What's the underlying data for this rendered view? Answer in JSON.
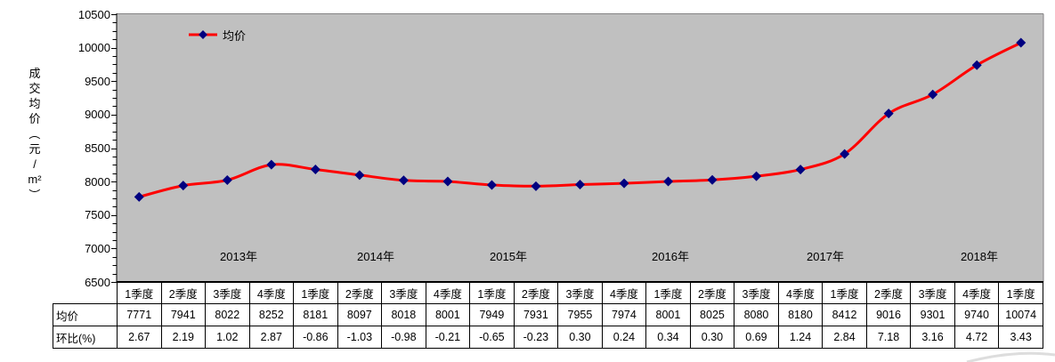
{
  "chart": {
    "y_axis_title": "成交均价（元/m²）",
    "y_axis_title_segments": [
      "成",
      "交",
      "均",
      "价",
      "（",
      "元",
      "/",
      "m²",
      "）"
    ],
    "legend": {
      "label": "均价"
    },
    "y_tick_labels": [
      "10500",
      "10000",
      "9500",
      "9000",
      "8500",
      "8000",
      "7500",
      "7000",
      "6500"
    ],
    "year_labels": [
      "2013年",
      "2014年",
      "2015年",
      "2016年",
      "2017年",
      "2018年"
    ],
    "colors": {
      "line": "#FF0000",
      "marker": "#000080",
      "plot_bg": "#C0C0C0",
      "plot_border": "#848284",
      "axis": "#000000"
    }
  },
  "chart_data": {
    "type": "line",
    "smoothed": true,
    "title": "",
    "ylabel": "成交均价（元/m²）",
    "xlabel": "",
    "ylim": [
      6500,
      10500
    ],
    "y_major_unit": 500,
    "y_minor_unit": 125,
    "grid": false,
    "legend_position": "top-left-inside",
    "categories": [
      "2013年 1季度",
      "2013年 2季度",
      "2013年 3季度",
      "2013年 4季度",
      "2014年 1季度",
      "2014年 2季度",
      "2014年 3季度",
      "2014年 4季度",
      "2015年 1季度",
      "2015年 2季度",
      "2015年 3季度",
      "2015年 4季度",
      "2016年 1季度",
      "2016年 2季度",
      "2016年 3季度",
      "2016年 4季度",
      "2017年 1季度",
      "2017年 2季度",
      "2017年 3季度",
      "2017年 4季度",
      "2018年 1季度"
    ],
    "series": [
      {
        "name": "均价",
        "values": [
          7771,
          7941,
          8022,
          8252,
          8181,
          8097,
          8018,
          8001,
          7949,
          7931,
          7955,
          7974,
          8001,
          8025,
          8080,
          8180,
          8412,
          9016,
          9301,
          9740,
          10074
        ]
      }
    ]
  },
  "table": {
    "column_headers": [
      "1季度",
      "2季度",
      "3季度",
      "4季度",
      "1季度",
      "2季度",
      "3季度",
      "4季度",
      "1季度",
      "2季度",
      "3季度",
      "4季度",
      "1季度",
      "2季度",
      "3季度",
      "4季度",
      "1季度",
      "2季度",
      "3季度",
      "4季度",
      "1季度"
    ],
    "rows": [
      {
        "label": "均价",
        "values": [
          "7771",
          "7941",
          "8022",
          "8252",
          "8181",
          "8097",
          "8018",
          "8001",
          "7949",
          "7931",
          "7955",
          "7974",
          "8001",
          "8025",
          "8080",
          "8180",
          "8412",
          "9016",
          "9301",
          "9740",
          "10074"
        ]
      },
      {
        "label": "环比(%)",
        "values": [
          "2.67",
          "2.19",
          "1.02",
          "2.87",
          "-0.86",
          "-1.03",
          "-0.98",
          "-0.21",
          "-0.65",
          "-0.23",
          "0.30",
          "0.24",
          "0.34",
          "0.30",
          "0.69",
          "1.24",
          "2.84",
          "7.18",
          "3.16",
          "4.72",
          "3.43"
        ]
      }
    ]
  }
}
